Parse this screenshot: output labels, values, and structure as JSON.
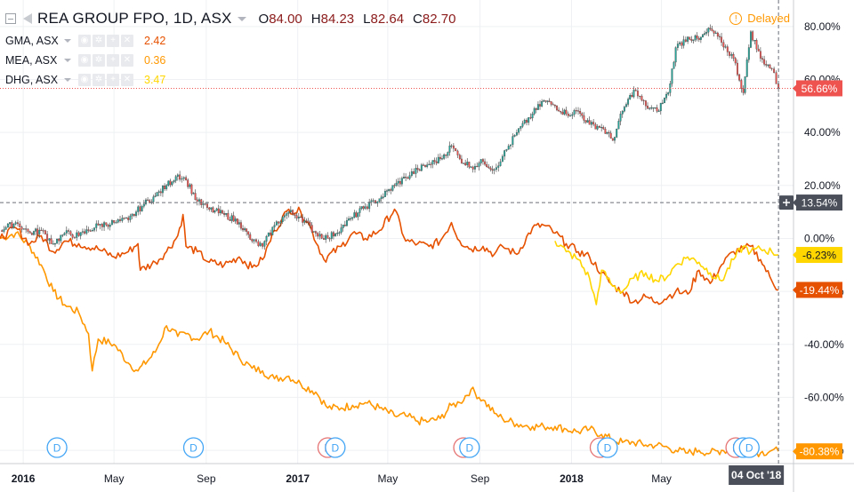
{
  "header": {
    "title": "REA GROUP FPO, 1D, ASX",
    "open_label": "O",
    "open": "84.00",
    "high_label": "H",
    "high": "84.23",
    "low_label": "L",
    "low": "82.64",
    "close_label": "C",
    "close": "82.70",
    "status": "Delayed",
    "colors": {
      "ohlc_value": "#8b1a1a",
      "status": "#ff9800"
    }
  },
  "comparisons": [
    {
      "symbol": "GMA, ASX",
      "value": "2.42",
      "color": "#e65100"
    },
    {
      "symbol": "MEA, ASX",
      "value": "0.36",
      "color": "#ff9800"
    },
    {
      "symbol": "DHG, ASX",
      "value": "3.47",
      "color": "#ffd600"
    }
  ],
  "price_labels": {
    "main": {
      "text": "56.66%",
      "value": 56.66,
      "color": "#ef5350"
    },
    "crosshair": {
      "text": "13.54%",
      "value": 13.54,
      "color": "#4a4f5a"
    },
    "dhg": {
      "text": "-6.23%",
      "value": -6.23,
      "color": "#ffd600"
    },
    "gma": {
      "text": "-19.44%",
      "value": -19.44,
      "color": "#e65100"
    },
    "mea": {
      "text": "-80.38%",
      "value": -80.38,
      "color": "#ff9800"
    }
  },
  "crosshair_date": "04 Oct '18",
  "chart_data": {
    "type": "line",
    "y_unit": "%",
    "ylim": [
      -85,
      90
    ],
    "y_ticks": [
      {
        "value": 80,
        "label": "80.00%"
      },
      {
        "value": 60,
        "label": "60.00%"
      },
      {
        "value": 40,
        "label": "40.00%"
      },
      {
        "value": 20,
        "label": "20.00%"
      },
      {
        "value": 0,
        "label": "0.00%"
      },
      {
        "value": -20,
        "label": "-20.00%"
      },
      {
        "value": -40,
        "label": "-40.00%"
      },
      {
        "value": -60,
        "label": "-60.00%"
      },
      {
        "value": -80,
        "label": "-80.00%"
      }
    ],
    "xlim": [
      "2015-12-01",
      "2018-10-24"
    ],
    "x_ticks": [
      {
        "date": "2016-01-01",
        "label": "2016",
        "bold": true
      },
      {
        "date": "2016-05-01",
        "label": "May",
        "bold": false
      },
      {
        "date": "2016-09-01",
        "label": "Sep",
        "bold": false
      },
      {
        "date": "2017-01-01",
        "label": "2017",
        "bold": true
      },
      {
        "date": "2017-05-01",
        "label": "May",
        "bold": false
      },
      {
        "date": "2017-09-01",
        "label": "Sep",
        "bold": false
      },
      {
        "date": "2018-01-01",
        "label": "2018",
        "bold": true
      },
      {
        "date": "2018-05-01",
        "label": "May",
        "bold": false
      }
    ],
    "grid": true,
    "series": [
      {
        "name": "REA GROUP FPO",
        "style": "candles",
        "color_up": "#26a69a",
        "color_down": "#ef5350",
        "points": [
          [
            "2015-12-01",
            3
          ],
          [
            "2015-12-22",
            6
          ],
          [
            "2016-01-10",
            2
          ],
          [
            "2016-01-25",
            3
          ],
          [
            "2016-02-10",
            -2
          ],
          [
            "2016-02-25",
            2
          ],
          [
            "2016-03-15",
            1
          ],
          [
            "2016-04-10",
            5
          ],
          [
            "2016-05-01",
            6
          ],
          [
            "2016-05-20",
            7
          ],
          [
            "2016-06-10",
            13
          ],
          [
            "2016-06-25",
            16
          ],
          [
            "2016-07-10",
            20
          ],
          [
            "2016-07-25",
            24
          ],
          [
            "2016-08-05",
            22
          ],
          [
            "2016-08-20",
            14
          ],
          [
            "2016-09-05",
            11
          ],
          [
            "2016-09-25",
            9
          ],
          [
            "2016-10-15",
            6
          ],
          [
            "2016-11-01",
            -1
          ],
          [
            "2016-11-15",
            -3
          ],
          [
            "2016-12-01",
            5
          ],
          [
            "2016-12-20",
            10
          ],
          [
            "2017-01-05",
            8
          ],
          [
            "2017-01-25",
            2
          ],
          [
            "2017-02-10",
            0
          ],
          [
            "2017-02-28",
            4
          ],
          [
            "2017-03-15",
            8
          ],
          [
            "2017-04-01",
            12
          ],
          [
            "2017-04-20",
            15
          ],
          [
            "2017-05-10",
            20
          ],
          [
            "2017-05-25",
            23
          ],
          [
            "2017-06-10",
            26
          ],
          [
            "2017-06-25",
            28
          ],
          [
            "2017-07-10",
            30
          ],
          [
            "2017-07-25",
            35
          ],
          [
            "2017-08-05",
            30
          ],
          [
            "2017-08-20",
            27
          ],
          [
            "2017-09-05",
            29
          ],
          [
            "2017-09-20",
            26
          ],
          [
            "2017-10-01",
            31
          ],
          [
            "2017-10-20",
            40
          ],
          [
            "2017-11-10",
            47
          ],
          [
            "2017-11-25",
            52
          ],
          [
            "2017-12-10",
            50
          ],
          [
            "2017-12-25",
            47
          ],
          [
            "2018-01-10",
            48
          ],
          [
            "2018-01-25",
            43
          ],
          [
            "2018-02-10",
            42
          ],
          [
            "2018-02-25",
            37
          ],
          [
            "2018-03-10",
            48
          ],
          [
            "2018-03-25",
            56
          ],
          [
            "2018-04-10",
            50
          ],
          [
            "2018-04-25",
            48
          ],
          [
            "2018-05-10",
            55
          ],
          [
            "2018-05-20",
            72
          ],
          [
            "2018-06-05",
            76
          ],
          [
            "2018-06-20",
            75
          ],
          [
            "2018-07-05",
            79
          ],
          [
            "2018-07-20",
            74
          ],
          [
            "2018-08-05",
            68
          ],
          [
            "2018-08-18",
            55
          ],
          [
            "2018-08-28",
            78
          ],
          [
            "2018-09-10",
            68
          ],
          [
            "2018-09-25",
            64
          ],
          [
            "2018-10-04",
            56.66
          ]
        ]
      },
      {
        "name": "GMA, ASX",
        "style": "line",
        "color": "#e65100",
        "points": [
          [
            "2015-12-01",
            0
          ],
          [
            "2015-12-22",
            4
          ],
          [
            "2016-01-10",
            -2
          ],
          [
            "2016-01-25",
            1
          ],
          [
            "2016-02-10",
            -5
          ],
          [
            "2016-02-25",
            -1
          ],
          [
            "2016-03-15",
            -2
          ],
          [
            "2016-04-10",
            -4
          ],
          [
            "2016-05-01",
            -7
          ],
          [
            "2016-05-20",
            -5
          ],
          [
            "2016-06-02",
            -2
          ],
          [
            "2016-06-05",
            -12
          ],
          [
            "2016-06-25",
            -9
          ],
          [
            "2016-07-10",
            -5
          ],
          [
            "2016-07-25",
            1
          ],
          [
            "2016-08-01",
            9
          ],
          [
            "2016-08-05",
            -3
          ],
          [
            "2016-08-20",
            -5
          ],
          [
            "2016-09-05",
            -9
          ],
          [
            "2016-09-25",
            -10
          ],
          [
            "2016-10-15",
            -7
          ],
          [
            "2016-11-01",
            -11
          ],
          [
            "2016-11-15",
            -8
          ],
          [
            "2016-12-01",
            3
          ],
          [
            "2016-12-20",
            11
          ],
          [
            "2017-01-05",
            10
          ],
          [
            "2017-01-15",
            6
          ],
          [
            "2017-02-05",
            -8
          ],
          [
            "2017-02-28",
            -3
          ],
          [
            "2017-03-15",
            2
          ],
          [
            "2017-04-01",
            0
          ],
          [
            "2017-04-20",
            3
          ],
          [
            "2017-05-10",
            11
          ],
          [
            "2017-05-25",
            -1
          ],
          [
            "2017-06-10",
            -2
          ],
          [
            "2017-06-25",
            -3
          ],
          [
            "2017-07-10",
            -1
          ],
          [
            "2017-07-25",
            6
          ],
          [
            "2017-08-05",
            -1
          ],
          [
            "2017-08-20",
            -4
          ],
          [
            "2017-09-05",
            -3
          ],
          [
            "2017-09-20",
            -6
          ],
          [
            "2017-10-01",
            -3
          ],
          [
            "2017-10-20",
            -6
          ],
          [
            "2017-11-10",
            4
          ],
          [
            "2017-11-25",
            5
          ],
          [
            "2017-12-10",
            2
          ],
          [
            "2017-12-25",
            -2
          ],
          [
            "2018-01-10",
            -5
          ],
          [
            "2018-01-25",
            -7
          ],
          [
            "2018-02-10",
            -13
          ],
          [
            "2018-02-25",
            -18
          ],
          [
            "2018-03-10",
            -20
          ],
          [
            "2018-03-25",
            -24
          ],
          [
            "2018-04-10",
            -22
          ],
          [
            "2018-04-25",
            -24
          ],
          [
            "2018-05-10",
            -22
          ],
          [
            "2018-05-20",
            -20
          ],
          [
            "2018-06-05",
            -21
          ],
          [
            "2018-06-20",
            -12
          ],
          [
            "2018-07-05",
            -17
          ],
          [
            "2018-07-20",
            -10
          ],
          [
            "2018-08-05",
            -5
          ],
          [
            "2018-08-18",
            -4
          ],
          [
            "2018-08-28",
            -3
          ],
          [
            "2018-09-10",
            -8
          ],
          [
            "2018-09-25",
            -16
          ],
          [
            "2018-10-04",
            -19.44
          ]
        ]
      },
      {
        "name": "MEA, ASX",
        "style": "line",
        "color": "#ff9800",
        "points": [
          [
            "2015-12-01",
            0
          ],
          [
            "2015-12-22",
            2
          ],
          [
            "2016-01-10",
            -3
          ],
          [
            "2016-01-25",
            -10
          ],
          [
            "2016-02-10",
            -20
          ],
          [
            "2016-02-25",
            -25
          ],
          [
            "2016-03-15",
            -28
          ],
          [
            "2016-03-28",
            -36
          ],
          [
            "2016-04-02",
            -50
          ],
          [
            "2016-04-10",
            -38
          ],
          [
            "2016-05-01",
            -40
          ],
          [
            "2016-05-20",
            -47
          ],
          [
            "2016-06-02",
            -50
          ],
          [
            "2016-06-25",
            -43
          ],
          [
            "2016-07-10",
            -33
          ],
          [
            "2016-07-25",
            -37
          ],
          [
            "2016-08-05",
            -36
          ],
          [
            "2016-08-20",
            -38
          ],
          [
            "2016-09-05",
            -35
          ],
          [
            "2016-09-25",
            -39
          ],
          [
            "2016-10-15",
            -45
          ],
          [
            "2016-11-01",
            -49
          ],
          [
            "2016-11-15",
            -50
          ],
          [
            "2016-12-01",
            -53
          ],
          [
            "2016-12-20",
            -52
          ],
          [
            "2017-01-05",
            -55
          ],
          [
            "2017-01-25",
            -58
          ],
          [
            "2017-02-10",
            -64
          ],
          [
            "2017-02-28",
            -64
          ],
          [
            "2017-03-15",
            -63
          ],
          [
            "2017-04-01",
            -62
          ],
          [
            "2017-04-20",
            -64
          ],
          [
            "2017-05-10",
            -67
          ],
          [
            "2017-05-25",
            -67
          ],
          [
            "2017-06-10",
            -69
          ],
          [
            "2017-06-25",
            -69
          ],
          [
            "2017-07-10",
            -68
          ],
          [
            "2017-07-25",
            -63
          ],
          [
            "2017-08-05",
            -62
          ],
          [
            "2017-08-20",
            -57
          ],
          [
            "2017-09-05",
            -61
          ],
          [
            "2017-09-20",
            -66
          ],
          [
            "2017-10-01",
            -68
          ],
          [
            "2017-10-20",
            -70
          ],
          [
            "2017-11-10",
            -71
          ],
          [
            "2017-11-25",
            -71
          ],
          [
            "2017-12-10",
            -71
          ],
          [
            "2017-12-25",
            -72
          ],
          [
            "2018-01-10",
            -73
          ],
          [
            "2018-01-25",
            -72
          ],
          [
            "2018-02-10",
            -74
          ],
          [
            "2018-02-25",
            -76
          ],
          [
            "2018-03-10",
            -77
          ],
          [
            "2018-03-25",
            -77
          ],
          [
            "2018-04-10",
            -78
          ],
          [
            "2018-04-25",
            -78
          ],
          [
            "2018-05-10",
            -79
          ],
          [
            "2018-05-20",
            -80
          ],
          [
            "2018-06-05",
            -81
          ],
          [
            "2018-06-20",
            -80
          ],
          [
            "2018-07-05",
            -81
          ],
          [
            "2018-07-20",
            -80
          ],
          [
            "2018-08-05",
            -80
          ],
          [
            "2018-08-18",
            -81
          ],
          [
            "2018-08-28",
            -80
          ],
          [
            "2018-09-10",
            -81
          ],
          [
            "2018-09-25",
            -80
          ],
          [
            "2018-10-04",
            -80.38
          ]
        ]
      },
      {
        "name": "DHG, ASX",
        "style": "line",
        "color": "#ffd600",
        "points": [
          [
            "2017-12-10",
            -1
          ],
          [
            "2017-12-25",
            -5
          ],
          [
            "2018-01-10",
            -8
          ],
          [
            "2018-01-25",
            -15
          ],
          [
            "2018-02-03",
            -25
          ],
          [
            "2018-02-10",
            -12
          ],
          [
            "2018-02-25",
            -18
          ],
          [
            "2018-03-10",
            -20
          ],
          [
            "2018-03-25",
            -15
          ],
          [
            "2018-04-10",
            -13
          ],
          [
            "2018-04-25",
            -16
          ],
          [
            "2018-05-10",
            -14
          ],
          [
            "2018-05-20",
            -10
          ],
          [
            "2018-06-05",
            -7
          ],
          [
            "2018-06-20",
            -9
          ],
          [
            "2018-07-05",
            -13
          ],
          [
            "2018-07-20",
            -16
          ],
          [
            "2018-08-05",
            -8
          ],
          [
            "2018-08-18",
            -3
          ],
          [
            "2018-08-28",
            -5
          ],
          [
            "2018-09-10",
            -4
          ],
          [
            "2018-09-25",
            -5
          ],
          [
            "2018-10-04",
            -6.23
          ]
        ]
      }
    ],
    "events": [
      {
        "label": "D",
        "date": "2016-02-15",
        "kind": "dividend"
      },
      {
        "label": "D",
        "date": "2016-08-15",
        "kind": "dividend"
      },
      {
        "label": "E",
        "date": "2017-02-10",
        "kind": "earnings"
      },
      {
        "label": "D",
        "date": "2017-02-20",
        "kind": "dividend"
      },
      {
        "label": "E",
        "date": "2017-08-10",
        "kind": "earnings"
      },
      {
        "label": "D",
        "date": "2017-08-18",
        "kind": "dividend"
      },
      {
        "label": "E",
        "date": "2018-02-08",
        "kind": "earnings"
      },
      {
        "label": "D",
        "date": "2018-02-18",
        "kind": "dividend"
      },
      {
        "label": "E",
        "date": "2018-08-08",
        "kind": "earnings"
      },
      {
        "label": "D",
        "date": "2018-08-18",
        "kind": "dividend"
      },
      {
        "label": "D",
        "date": "2018-08-26",
        "kind": "dividend"
      }
    ]
  }
}
